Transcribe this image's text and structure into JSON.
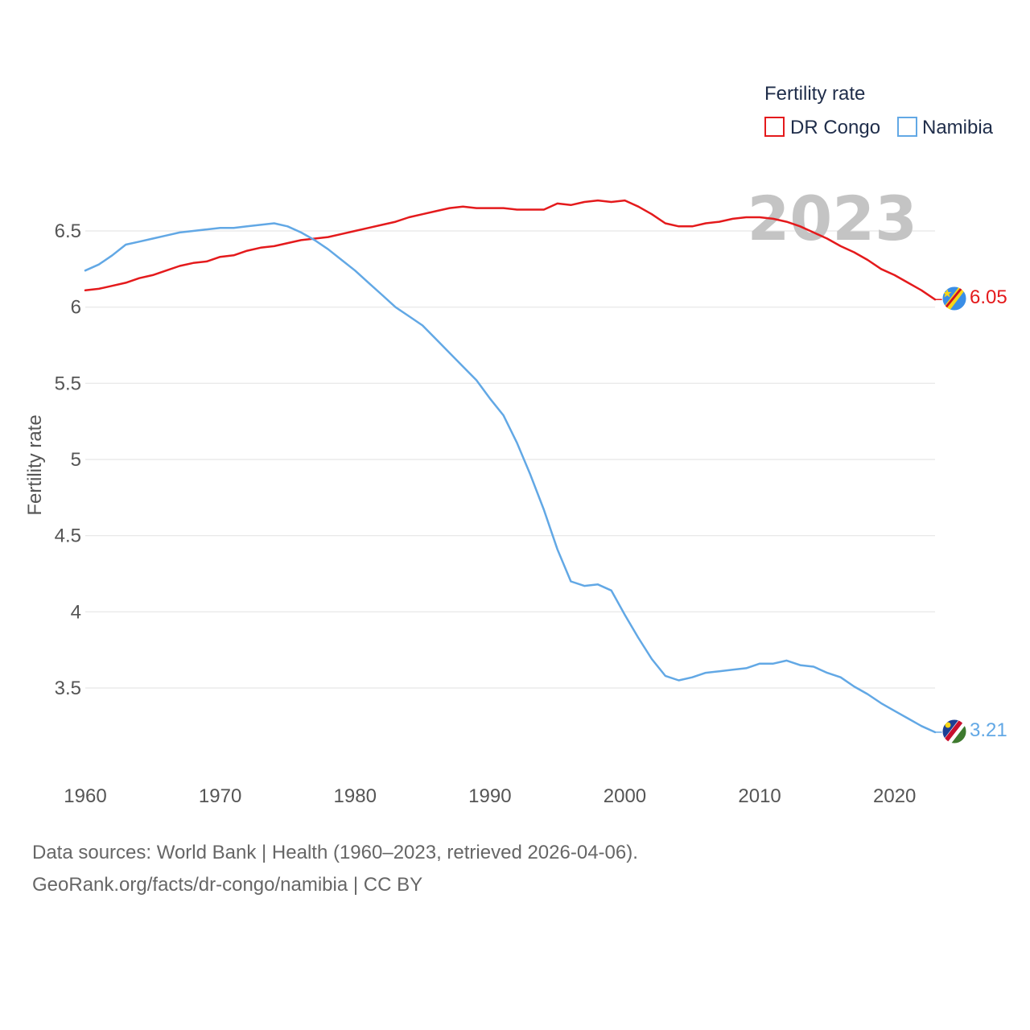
{
  "chart_data": {
    "type": "line",
    "title": "",
    "xlabel": "",
    "ylabel": "Fertility rate",
    "xlim": [
      1960,
      2023
    ],
    "ylim": [
      3.0,
      6.95
    ],
    "x_ticks": [
      1960,
      1970,
      1980,
      1990,
      2000,
      2010,
      2020
    ],
    "y_ticks": [
      3.5,
      4,
      4.5,
      5,
      5.5,
      6,
      6.5
    ],
    "y_tick_labels": [
      "3.5",
      "4",
      "4.5",
      "5",
      "5.5",
      "6",
      "6.5"
    ],
    "grid": true,
    "legend": {
      "title": "Fertility rate",
      "position": "top-right"
    },
    "year_label": "2023",
    "x": [
      1960,
      1961,
      1962,
      1963,
      1964,
      1965,
      1966,
      1967,
      1968,
      1969,
      1970,
      1971,
      1972,
      1973,
      1974,
      1975,
      1976,
      1977,
      1978,
      1979,
      1980,
      1981,
      1982,
      1983,
      1984,
      1985,
      1986,
      1987,
      1988,
      1989,
      1990,
      1991,
      1992,
      1993,
      1994,
      1995,
      1996,
      1997,
      1998,
      1999,
      2000,
      2001,
      2002,
      2003,
      2004,
      2005,
      2006,
      2007,
      2008,
      2009,
      2010,
      2011,
      2012,
      2013,
      2014,
      2015,
      2016,
      2017,
      2018,
      2019,
      2020,
      2021,
      2022,
      2023
    ],
    "series": [
      {
        "name": "DR Congo",
        "color": "#e41a1c",
        "end_label": "6.05",
        "values": [
          6.11,
          6.12,
          6.14,
          6.16,
          6.19,
          6.21,
          6.24,
          6.27,
          6.29,
          6.3,
          6.33,
          6.34,
          6.37,
          6.39,
          6.4,
          6.42,
          6.44,
          6.45,
          6.46,
          6.48,
          6.5,
          6.52,
          6.54,
          6.56,
          6.59,
          6.61,
          6.63,
          6.65,
          6.66,
          6.65,
          6.65,
          6.65,
          6.64,
          6.64,
          6.64,
          6.68,
          6.67,
          6.69,
          6.7,
          6.69,
          6.7,
          6.66,
          6.61,
          6.55,
          6.53,
          6.53,
          6.55,
          6.56,
          6.58,
          6.59,
          6.59,
          6.58,
          6.56,
          6.53,
          6.49,
          6.45,
          6.4,
          6.36,
          6.31,
          6.25,
          6.21,
          6.16,
          6.11,
          6.05
        ]
      },
      {
        "name": "Namibia",
        "color": "#62a8e5",
        "end_label": "3.21",
        "values": [
          6.24,
          6.28,
          6.34,
          6.41,
          6.43,
          6.45,
          6.47,
          6.49,
          6.5,
          6.51,
          6.52,
          6.52,
          6.53,
          6.54,
          6.55,
          6.53,
          6.49,
          6.44,
          6.38,
          6.31,
          6.24,
          6.16,
          6.08,
          6.0,
          5.94,
          5.88,
          5.79,
          5.7,
          5.61,
          5.52,
          5.4,
          5.29,
          5.11,
          4.9,
          4.67,
          4.41,
          4.2,
          4.17,
          4.18,
          4.14,
          3.98,
          3.83,
          3.69,
          3.58,
          3.55,
          3.57,
          3.6,
          3.61,
          3.62,
          3.63,
          3.66,
          3.66,
          3.68,
          3.65,
          3.64,
          3.6,
          3.57,
          3.51,
          3.46,
          3.4,
          3.35,
          3.3,
          3.25,
          3.21
        ]
      }
    ]
  },
  "footer": {
    "line1": "Data sources: World Bank | Health (1960–2023, retrieved 2026-04-06).",
    "line2": "GeoRank.org/facts/dr-congo/namibia | CC BY"
  }
}
